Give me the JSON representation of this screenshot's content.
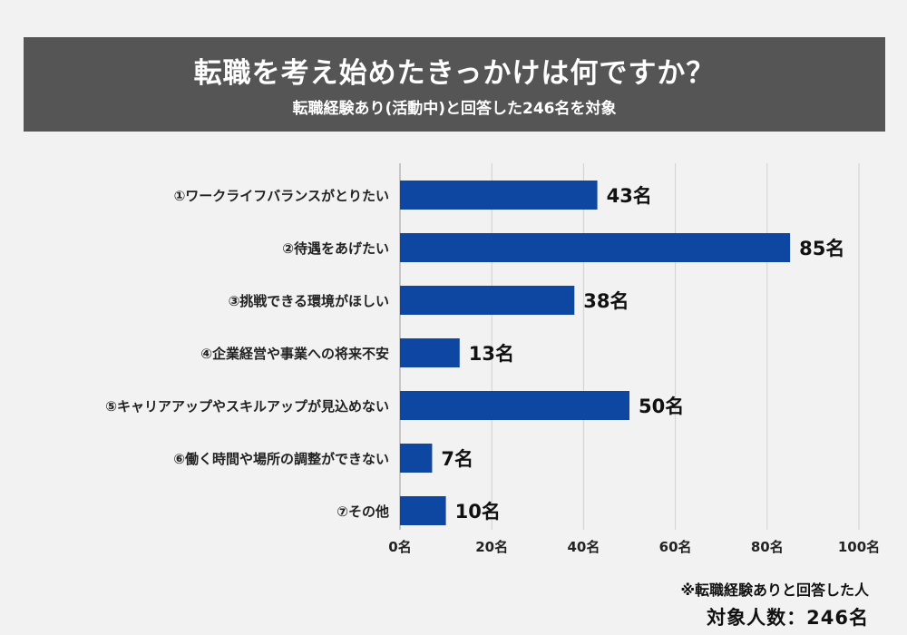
{
  "header": {
    "title": "転職を考え始めたきっかけは何ですか？",
    "subtitle": "転職経験あり(活動中)と回答した246名を対象"
  },
  "chart_data": {
    "type": "bar",
    "orientation": "horizontal",
    "categories": [
      "①ワークライフバランスがとりたい",
      "②待遇をあげたい",
      "③挑戦できる環境がほしい",
      "④企業経営や事業への将来不安",
      "⑤キャリアアップやスキルアップが見込めない",
      "⑥働く時間や場所の調整ができない",
      "⑦その他"
    ],
    "values": [
      43,
      85,
      38,
      13,
      50,
      7,
      10
    ],
    "value_labels": [
      "43名",
      "85名",
      "38名",
      "13名",
      "50名",
      "7名",
      "10名"
    ],
    "xlim": [
      0,
      100
    ],
    "xticks": [
      0,
      20,
      40,
      60,
      80,
      100
    ],
    "xtick_labels": [
      "0名",
      "20名",
      "40名",
      "60名",
      "80名",
      "100名"
    ],
    "bar_color": "#0d47a1",
    "grid": true
  },
  "footnote": {
    "note": "※転職経験ありと回答した人",
    "total": "対象人数：246名"
  }
}
